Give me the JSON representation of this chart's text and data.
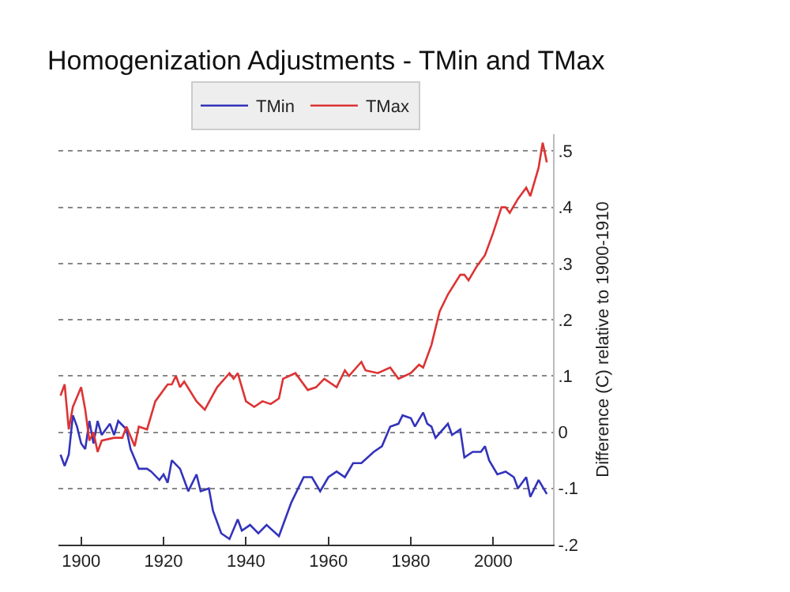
{
  "chart_data": {
    "type": "line",
    "title": "Homogenization Adjustments - TMin and TMax",
    "ylabel": "Difference (C) relative to 1900-1910",
    "xlim": [
      1894.5,
      2014.5
    ],
    "xticks": [
      1900,
      1920,
      1940,
      1960,
      1980,
      2000
    ],
    "ylim": [
      -0.2,
      0.53
    ],
    "yticks": [
      {
        "value": -0.2,
        "label": "-.2"
      },
      {
        "value": -0.1,
        "label": "-.1"
      },
      {
        "value": 0,
        "label": "0"
      },
      {
        "value": 0.1,
        "label": ".1"
      },
      {
        "value": 0.2,
        "label": ".2"
      },
      {
        "value": 0.3,
        "label": ".3"
      },
      {
        "value": 0.4,
        "label": ".4"
      },
      {
        "value": 0.5,
        "label": ".5"
      }
    ],
    "grid": "y",
    "legend": "top",
    "line_style": "solid",
    "marker": "none",
    "series": [
      {
        "name": "TMin",
        "color": "#3333bb",
        "x": [
          1895,
          1896,
          1897,
          1898,
          1899,
          1900,
          1901,
          1902,
          1903,
          1904,
          1905,
          1907,
          1908,
          1909,
          1911,
          1912,
          1914,
          1916,
          1917,
          1919,
          1920,
          1921,
          1922,
          1924,
          1926,
          1928,
          1929,
          1931,
          1932,
          1934,
          1936,
          1938,
          1939,
          1941,
          1943,
          1945,
          1948,
          1949,
          1951,
          1954,
          1956,
          1958,
          1960,
          1962,
          1964,
          1966,
          1968,
          1971,
          1973,
          1975,
          1977,
          1978,
          1980,
          1981,
          1983,
          1984,
          1985,
          1986,
          1989,
          1990,
          1992,
          1993,
          1995,
          1997,
          1998,
          1999,
          2001,
          2003,
          2005,
          2006,
          2008,
          2009,
          2011,
          2013
        ],
        "values": [
          -0.04,
          -0.06,
          -0.04,
          0.03,
          0.01,
          -0.02,
          -0.03,
          0.02,
          -0.02,
          0.02,
          -0.005,
          0.015,
          -0.005,
          0.02,
          0.005,
          -0.03,
          -0.065,
          -0.065,
          -0.07,
          -0.085,
          -0.075,
          -0.09,
          -0.05,
          -0.065,
          -0.105,
          -0.075,
          -0.105,
          -0.1,
          -0.14,
          -0.18,
          -0.19,
          -0.155,
          -0.175,
          -0.165,
          -0.18,
          -0.165,
          -0.185,
          -0.165,
          -0.125,
          -0.08,
          -0.08,
          -0.105,
          -0.08,
          -0.07,
          -0.08,
          -0.055,
          -0.055,
          -0.035,
          -0.025,
          0.01,
          0.015,
          0.03,
          0.025,
          0.01,
          0.035,
          0.015,
          0.01,
          -0.01,
          0.015,
          -0.005,
          0.005,
          -0.045,
          -0.035,
          -0.035,
          -0.025,
          -0.05,
          -0.075,
          -0.07,
          -0.08,
          -0.1,
          -0.08,
          -0.115,
          -0.085,
          -0.11
        ]
      },
      {
        "name": "TMax",
        "color": "#dd3333",
        "x": [
          1895,
          1896,
          1897,
          1898,
          1900,
          1901,
          1902,
          1903,
          1904,
          1905,
          1908,
          1910,
          1911,
          1913,
          1914,
          1916,
          1918,
          1921,
          1922,
          1923,
          1924,
          1925,
          1928,
          1930,
          1933,
          1936,
          1937,
          1938,
          1940,
          1942,
          1944,
          1946,
          1948,
          1949,
          1952,
          1955,
          1957,
          1959,
          1962,
          1964,
          1965,
          1968,
          1969,
          1972,
          1975,
          1977,
          1980,
          1982,
          1983,
          1985,
          1987,
          1989,
          1992,
          1993,
          1994,
          1996,
          1998,
          2000,
          2002,
          2003,
          2004,
          2006,
          2008,
          2009,
          2011,
          2012,
          2013
        ],
        "values": [
          0.065,
          0.085,
          0.005,
          0.045,
          0.08,
          0.04,
          -0.015,
          0,
          -0.035,
          -0.015,
          -0.01,
          -0.01,
          0.01,
          -0.025,
          0.01,
          0.005,
          0.055,
          0.085,
          0.085,
          0.1,
          0.08,
          0.09,
          0.055,
          0.04,
          0.08,
          0.105,
          0.095,
          0.105,
          0.055,
          0.045,
          0.055,
          0.05,
          0.06,
          0.095,
          0.105,
          0.075,
          0.08,
          0.095,
          0.08,
          0.11,
          0.1,
          0.125,
          0.11,
          0.105,
          0.115,
          0.095,
          0.105,
          0.12,
          0.115,
          0.155,
          0.215,
          0.245,
          0.28,
          0.28,
          0.27,
          0.295,
          0.315,
          0.355,
          0.4,
          0.4,
          0.39,
          0.415,
          0.435,
          0.42,
          0.47,
          0.515,
          0.48
        ]
      }
    ]
  }
}
